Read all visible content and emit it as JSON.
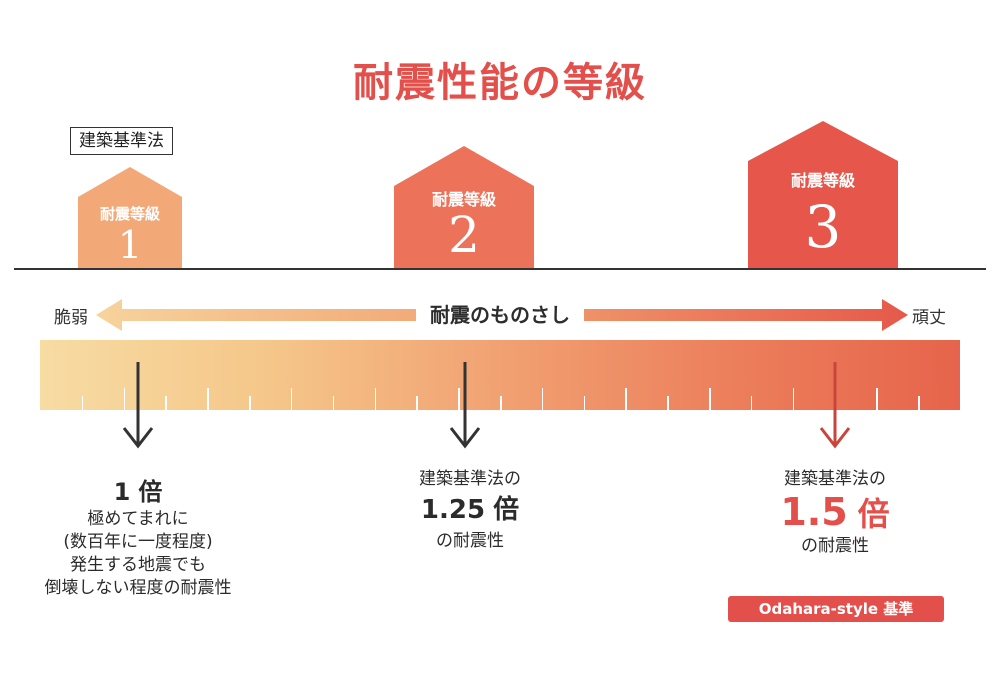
{
  "title": "耐震性能の等級",
  "law_label": "建築基準法",
  "houses": [
    {
      "label": "耐震等級",
      "number": "1",
      "color": "#f2a877"
    },
    {
      "label": "耐震等級",
      "number": "2",
      "color": "#ec735a"
    },
    {
      "label": "耐震等級",
      "number": "3",
      "color": "#e6564a"
    }
  ],
  "scale": {
    "caption": "耐震のものさし",
    "left": "脆弱",
    "right": "頑丈"
  },
  "levels": [
    {
      "lines": [
        "極めてまれに",
        "(数百年に一度程度)",
        "発生する地震でも",
        "倒壊しない程度の耐震性"
      ],
      "value": "1",
      "unit": "倍"
    },
    {
      "pre": "建築基準法の",
      "value": "1.25",
      "unit": "倍",
      "post": "の耐震性"
    },
    {
      "pre": "建築基準法の",
      "value": "1.5",
      "unit": "倍",
      "post": "の耐震性",
      "badge": "Odahara-style 基準"
    }
  ],
  "colors": {
    "accent": "#e34f4a",
    "ink": "#333333"
  }
}
